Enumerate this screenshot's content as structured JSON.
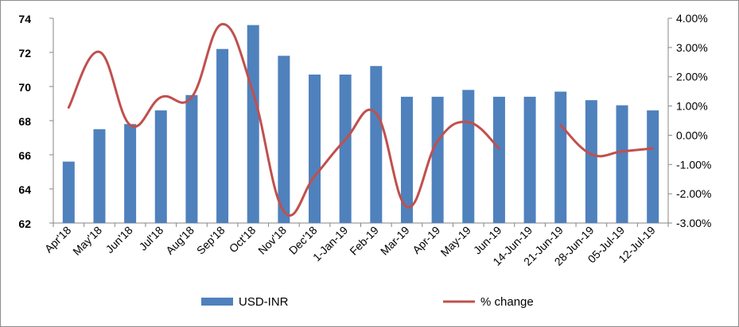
{
  "chart_data": {
    "type": "bar",
    "categories": [
      "Apr'18",
      "May'18",
      "Jun'18",
      "Jul'18",
      "Aug'18",
      "Sep'18",
      "Oct'18",
      "Nov'18",
      "Dec'18",
      "1-Jan-19",
      "Feb-19",
      "Mar-19",
      "Apr-19",
      "May-19",
      "Jun-19",
      "14-Jun-19",
      "21-Jun-19",
      "28-Jun-19",
      "05-Jul-19",
      "12-Jul-19"
    ],
    "series": [
      {
        "name": "USD-INR",
        "type": "bar",
        "axis": "left",
        "color": "#4f81bd",
        "values": [
          65.6,
          67.5,
          67.8,
          68.6,
          69.5,
          72.2,
          73.6,
          71.8,
          70.7,
          70.7,
          71.2,
          69.4,
          69.4,
          69.8,
          69.4,
          69.4,
          69.7,
          69.2,
          68.9,
          68.6
        ]
      },
      {
        "name": "% change",
        "type": "line",
        "axis": "right",
        "color": "#c0504d",
        "values": [
          0.95,
          2.85,
          0.35,
          1.3,
          1.3,
          3.8,
          1.45,
          -2.6,
          -1.4,
          -0.15,
          0.75,
          -2.45,
          -0.2,
          0.45,
          -0.45,
          null,
          0.35,
          -0.65,
          -0.55,
          -0.45
        ]
      }
    ],
    "y_left": {
      "min": 62,
      "max": 74,
      "ticks": [
        "62",
        "64",
        "66",
        "68",
        "70",
        "72",
        "74"
      ]
    },
    "y_right": {
      "min": -3,
      "max": 4,
      "ticks": [
        "-3.00%",
        "-2.00%",
        "-1.00%",
        "0.00%",
        "1.00%",
        "2.00%",
        "3.00%",
        "4.00%"
      ]
    },
    "legend": {
      "position": "bottom",
      "items": [
        "USD-INR",
        "% change"
      ]
    },
    "grid": false
  }
}
